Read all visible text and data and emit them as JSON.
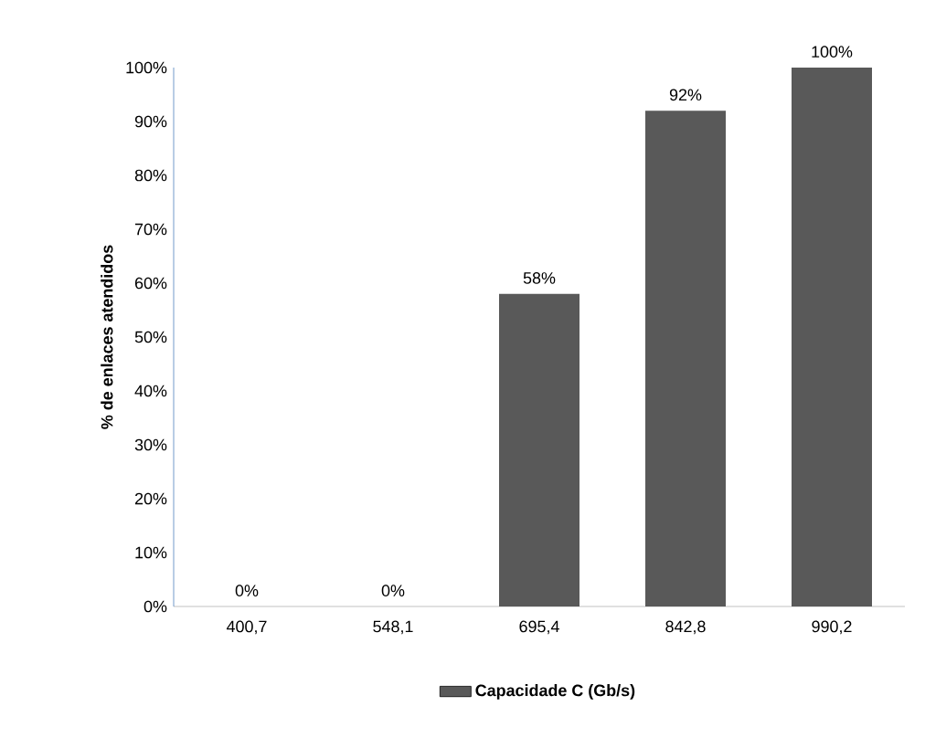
{
  "chart_data": {
    "type": "bar",
    "ylabel": "% de enlaces atendidos",
    "categories": [
      "400,7",
      "548,1",
      "695,4",
      "842,8",
      "990,2"
    ],
    "series": [
      {
        "name": "Capacidade C (Gb/s)",
        "color": "#595959",
        "values": [
          0,
          0,
          58,
          92,
          100
        ],
        "value_labels": [
          "0%",
          "0%",
          "58%",
          "92%",
          "100%"
        ]
      }
    ],
    "ylim": [
      0,
      100
    ],
    "yticks": [
      {
        "value": 0,
        "label": "0%"
      },
      {
        "value": 10,
        "label": "10%"
      },
      {
        "value": 20,
        "label": "20%"
      },
      {
        "value": 30,
        "label": "30%"
      },
      {
        "value": 40,
        "label": "40%"
      },
      {
        "value": 50,
        "label": "50%"
      },
      {
        "value": 60,
        "label": "60%"
      },
      {
        "value": 70,
        "label": "70%"
      },
      {
        "value": 80,
        "label": "80%"
      },
      {
        "value": 90,
        "label": "90%"
      },
      {
        "value": 100,
        "label": "100%"
      }
    ],
    "legend": "bottom",
    "grid": false
  }
}
